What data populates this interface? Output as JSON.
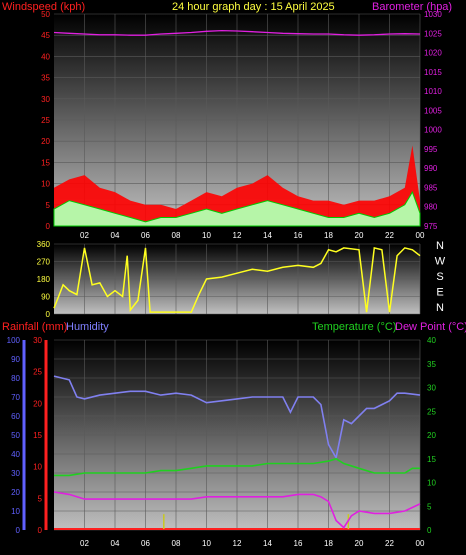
{
  "header": {
    "left": "Windspeed (kph)",
    "center": "24 hour graph day : 15 April 2025",
    "right": "Barometer (hpa)"
  },
  "lower_header": {
    "rainfall": "Rainfall (mm)",
    "humidity": "Humidity",
    "temperature": "Temperature (°C)",
    "dewpoint": "Dew Point (°C)"
  },
  "colors": {
    "wind": "#ff0000",
    "gust_fill": "#b6f5a8",
    "gust_line": "#00cc00",
    "barometer": "#e020e0",
    "direction": "#ffff20",
    "humidity": "#8080f0",
    "temperature": "#20d020",
    "dewpoint": "#e020e0",
    "rainfall": "#ff2020",
    "rain_bars": "#c8c820",
    "axis_humidity": "#6060ff"
  },
  "chart_data": [
    {
      "type": "line",
      "name": "wind-barometer",
      "x_ticks": [
        "02",
        "04",
        "06",
        "08",
        "10",
        "12",
        "14",
        "16",
        "18",
        "20",
        "22",
        "00"
      ],
      "y_left_ticks": [
        0,
        5,
        10,
        15,
        20,
        25,
        30,
        35,
        40,
        45,
        50
      ],
      "y_left_range": [
        0,
        50
      ],
      "y_right_ticks": [
        975,
        980,
        985,
        990,
        995,
        1000,
        1005,
        1010,
        1015,
        1020,
        1025,
        1030
      ],
      "y_right_range": [
        975,
        1030
      ],
      "barometer": {
        "x": [
          0,
          1,
          2,
          3,
          4,
          5,
          6,
          7,
          8,
          9,
          10,
          11,
          12,
          13,
          14,
          15,
          16,
          17,
          18,
          19,
          20,
          21,
          22,
          23,
          24
        ],
        "values": [
          1025.2,
          1025.0,
          1024.8,
          1024.6,
          1024.6,
          1024.5,
          1024.5,
          1024.8,
          1025.0,
          1025.2,
          1025.5,
          1025.7,
          1025.6,
          1025.4,
          1025.2,
          1025.0,
          1024.9,
          1024.8,
          1024.8,
          1024.6,
          1024.5,
          1024.6,
          1024.8,
          1024.9,
          1024.8
        ]
      },
      "wind_avg": {
        "x": [
          0,
          1,
          2,
          3,
          4,
          5,
          6,
          7,
          8,
          9,
          10,
          11,
          12,
          13,
          14,
          15,
          16,
          17,
          18,
          19,
          20,
          21,
          22,
          23,
          23.5,
          24
        ],
        "values": [
          4,
          6,
          5,
          4,
          3,
          2,
          1,
          2,
          2,
          3,
          4,
          3,
          4,
          5,
          6,
          5,
          4,
          3,
          2,
          2,
          3,
          2,
          3,
          5,
          8,
          3
        ]
      },
      "wind_gust": {
        "x": [
          0,
          1,
          2,
          3,
          4,
          5,
          6,
          7,
          8,
          9,
          10,
          11,
          12,
          13,
          14,
          15,
          16,
          17,
          18,
          19,
          20,
          21,
          22,
          23,
          23.5,
          24
        ],
        "values": [
          9,
          11,
          12,
          9,
          8,
          6,
          5,
          5,
          4,
          6,
          8,
          7,
          9,
          10,
          12,
          9,
          7,
          6,
          6,
          5,
          6,
          6,
          7,
          9,
          19,
          6
        ]
      }
    },
    {
      "type": "line",
      "name": "wind-direction",
      "x_ticks": [],
      "y_ticks": [
        0,
        90,
        180,
        270,
        360
      ],
      "y_range": [
        0,
        360
      ],
      "compass": [
        "N",
        "W",
        "S",
        "E",
        "N"
      ],
      "x": [
        0,
        0.3,
        0.6,
        1,
        1.5,
        2,
        2.5,
        3,
        3.5,
        4,
        4.5,
        4.8,
        5,
        5.5,
        6,
        6.3,
        6.8,
        7,
        8,
        9,
        9.5,
        10,
        11,
        12,
        13,
        14,
        15,
        16,
        17,
        17.5,
        18,
        18.5,
        19,
        20,
        20.5,
        21,
        21.5,
        22,
        22.5,
        23,
        23.5,
        24
      ],
      "values": [
        30,
        90,
        150,
        120,
        100,
        340,
        150,
        160,
        90,
        120,
        90,
        300,
        20,
        70,
        340,
        10,
        10,
        10,
        10,
        10,
        100,
        180,
        190,
        210,
        230,
        220,
        240,
        250,
        240,
        260,
        330,
        320,
        340,
        330,
        10,
        340,
        330,
        10,
        300,
        340,
        330,
        300
      ]
    },
    {
      "type": "line",
      "name": "temperature-humidity",
      "x_ticks": [
        "02",
        "04",
        "06",
        "08",
        "10",
        "12",
        "14",
        "16",
        "18",
        "20",
        "22",
        "00"
      ],
      "y_humidity_ticks": [
        0,
        10,
        20,
        30,
        40,
        50,
        60,
        70,
        80,
        90,
        100
      ],
      "y_humidity_range": [
        0,
        100
      ],
      "y_rain_ticks": [
        0,
        5,
        10,
        15,
        20,
        25,
        30
      ],
      "y_rain_range": [
        0,
        30
      ],
      "y_temp_ticks": [
        0,
        5,
        10,
        15,
        20,
        25,
        30,
        35,
        40
      ],
      "y_temp_range": [
        0,
        40
      ],
      "series": [
        {
          "key": "humidity",
          "x": [
            0,
            1,
            1.5,
            2,
            3,
            4,
            5,
            6,
            7,
            8,
            9,
            10,
            11,
            12,
            13,
            14,
            15,
            15.5,
            16,
            17,
            17.5,
            18,
            18.5,
            19,
            19.5,
            20,
            20.5,
            21,
            22,
            22.5,
            23,
            24
          ],
          "values": [
            81,
            79,
            70,
            69,
            71,
            72,
            73,
            73,
            71,
            72,
            71,
            67,
            68,
            69,
            70,
            70,
            70,
            62,
            70,
            70,
            66,
            45,
            38,
            58,
            56,
            60,
            64,
            64,
            68,
            72,
            72,
            71
          ]
        },
        {
          "key": "temperature",
          "x": [
            0,
            1,
            2,
            3,
            4,
            5,
            6,
            7,
            8,
            9,
            10,
            11,
            12,
            13,
            14,
            15,
            16,
            17,
            18,
            18.5,
            19,
            20,
            21,
            22,
            23,
            23.5,
            24
          ],
          "values": [
            11.5,
            11.5,
            12,
            12,
            12,
            12,
            12,
            12.5,
            12.5,
            13,
            13.5,
            13.5,
            13.5,
            13.5,
            14,
            14,
            14,
            14,
            14.5,
            15,
            14,
            13,
            12,
            12,
            12,
            13,
            13
          ]
        },
        {
          "key": "dewpoint",
          "x": [
            0,
            1,
            2,
            3,
            4,
            5,
            6,
            7,
            8,
            9,
            10,
            11,
            12,
            13,
            14,
            15,
            16,
            17,
            17.5,
            18,
            18.5,
            19,
            19.5,
            20,
            21,
            22,
            23,
            24
          ],
          "values": [
            8,
            7.5,
            6.5,
            6.5,
            6.5,
            6.5,
            6.5,
            6.5,
            6.5,
            6.5,
            7,
            7,
            7,
            7,
            7,
            7,
            7.5,
            7.5,
            7,
            6,
            2,
            0.5,
            3,
            4,
            3.5,
            3.5,
            4,
            5.5
          ]
        }
      ],
      "rain_events": [
        {
          "x": 7.2,
          "value": 2.5
        },
        {
          "x": 19.3,
          "value": 2.5
        }
      ]
    }
  ]
}
